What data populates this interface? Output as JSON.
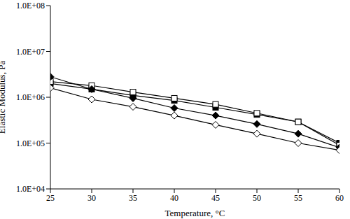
{
  "chart_data": {
    "type": "line",
    "x_label": "Temperature, °C",
    "y_label": "Elastic Modulus, Pa",
    "x": [
      25,
      30,
      35,
      40,
      45,
      50,
      55,
      60
    ],
    "xlim": [
      25,
      60
    ],
    "xticks": [
      25,
      30,
      35,
      40,
      45,
      50,
      55,
      60
    ],
    "ylim": [
      10000,
      100000000
    ],
    "yticks": [
      {
        "value": 10000,
        "label": "1.0E+04"
      },
      {
        "value": 100000,
        "label": "1.0E+05"
      },
      {
        "value": 1000000,
        "label": "1.0E+06"
      },
      {
        "value": 10000000,
        "label": "1.0E+07"
      },
      {
        "value": 100000000,
        "label": "1.0E+08"
      }
    ],
    "log": "y",
    "grid": false,
    "series": [
      {
        "color": "#000000",
        "marker": "square",
        "values": [
          2000000,
          1500000,
          1100000,
          850000,
          600000,
          420000,
          290000,
          100000
        ]
      },
      {
        "color": "#000000",
        "marker": "open_square",
        "values": [
          2200000,
          1800000,
          1300000,
          950000,
          700000,
          450000,
          290000,
          90000
        ]
      },
      {
        "color": "#000000",
        "marker": "diamond",
        "values": [
          2800000,
          1500000,
          950000,
          580000,
          400000,
          260000,
          160000,
          80000
        ]
      },
      {
        "color": "#000000",
        "marker": "open_diamond",
        "values": [
          1600000,
          900000,
          620000,
          400000,
          250000,
          160000,
          100000,
          70000
        ]
      }
    ]
  }
}
